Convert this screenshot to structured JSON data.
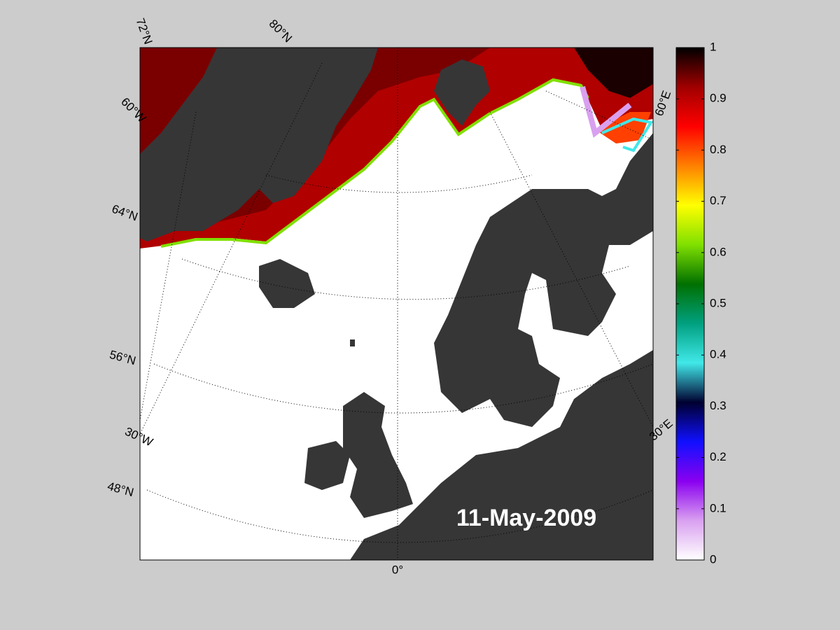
{
  "map": {
    "date": "11-May-2009",
    "graticule_labels": [
      "72°N",
      "80°N",
      "60°W",
      "64°N",
      "56°N",
      "30°W",
      "48°N",
      "0°",
      "60°E",
      "30°E"
    ]
  },
  "colorbar": {
    "range": [
      0,
      1
    ],
    "ticks": [
      0,
      0.1,
      0.2,
      0.3,
      0.4,
      0.5,
      0.6,
      0.7,
      0.8,
      0.9,
      1
    ],
    "colormap": [
      "#ffffff",
      "#d9a0f0",
      "#8a00f0",
      "#1010ff",
      "#000030",
      "#40e8e8",
      "#00a080",
      "#007000",
      "#80e000",
      "#ffff00",
      "#ff8000",
      "#ff0000",
      "#a00000",
      "#000000"
    ]
  }
}
